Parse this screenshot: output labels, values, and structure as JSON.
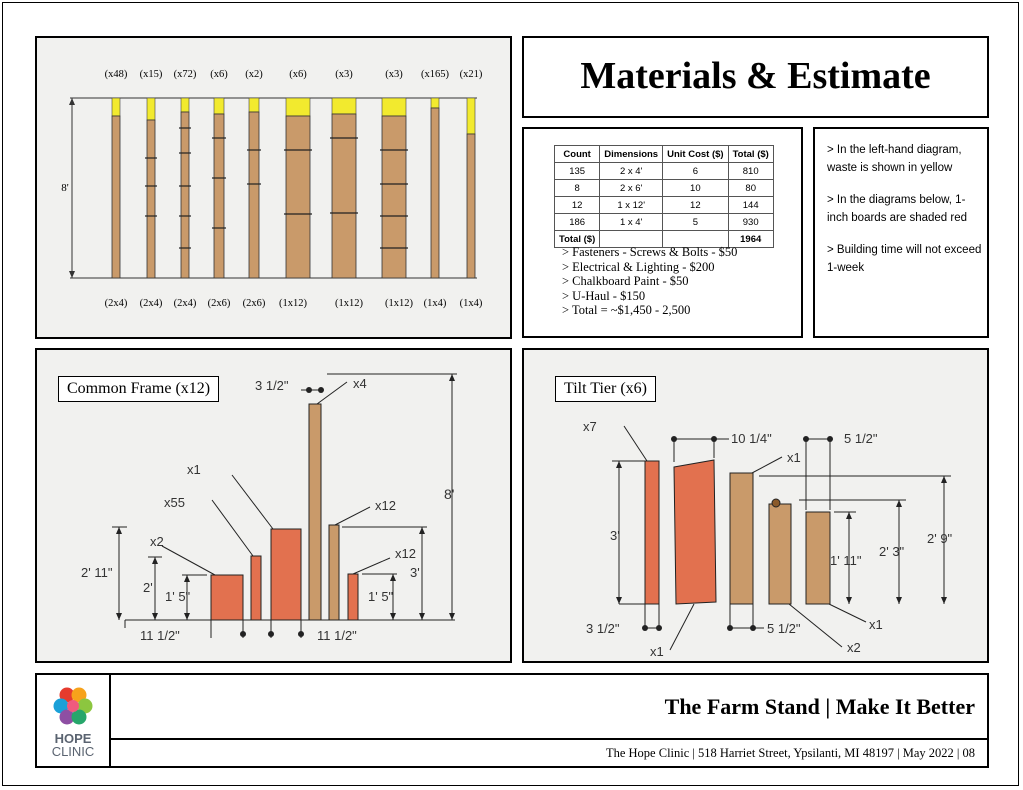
{
  "title": "Materials & Estimate",
  "lumber_diagram": {
    "counts": [
      "(x48)",
      "(x15)",
      "(x72)",
      "(x6)",
      "(x2)",
      "(x6)",
      "(x3)",
      "(x3)",
      "(x165)",
      "(x21)"
    ],
    "sizes": [
      "(2x4)",
      "(2x4)",
      "(2x4)",
      "(2x6)",
      "(2x6)",
      "(1x12)",
      "(1x12)",
      "(1x12)",
      "(1x4)",
      "(1x4)"
    ],
    "height_label": "8'"
  },
  "estimate_table": {
    "headers": [
      "Count",
      "Dimensions",
      "Unit Cost ($)",
      "Total ($)"
    ],
    "rows": [
      [
        "135",
        "2 x 4'",
        "6",
        "810"
      ],
      [
        "8",
        "2 x 6'",
        "10",
        "80"
      ],
      [
        "12",
        "1 x 12'",
        "12",
        "144"
      ],
      [
        "186",
        "1 x 4'",
        "5",
        "930"
      ]
    ],
    "total_label": "Total ($)",
    "total_value": "1964"
  },
  "additional_costs": [
    "> Fasteners - Screws & Bolts - $50",
    "> Electrical & Lighting - $200",
    "> Chalkboard Paint - $50",
    "> U-Haul - $150",
    "> Total = ~$1,450 - 2,500"
  ],
  "notes": [
    "> In the left-hand diagram, waste is shown in yellow",
    "> In the diagrams below, 1-inch boards are shaded red",
    "> Building time will not exceed 1-week"
  ],
  "common_frame": {
    "label": "Common Frame (x12)",
    "annotations": {
      "top_width": "3 1/2\"",
      "x4": "x4",
      "x1": "x1",
      "x55": "x55",
      "x2": "x2",
      "x12a": "x12",
      "x12b": "x12",
      "h_total": "8'",
      "h_2_11": "2' 11\"",
      "h_2": "2'",
      "h_1_5_left": "1' 5\"",
      "h_3": "3'",
      "h_1_5_right": "1' 5\"",
      "w_left": "11 1/2\"",
      "w_right": "11 1/2\""
    }
  },
  "tilt_tier": {
    "label": "Tilt Tier (x6)",
    "annotations": {
      "x7": "x7",
      "w_10_1_4": "10 1/4\"",
      "w_5_1_2_top": "5 1/2\"",
      "x1_top": "x1",
      "h_3": "3'",
      "h_1_11": "1' 11\"",
      "h_2_3": "2' 3\"",
      "h_2_9": "2' 9\"",
      "w_3_1_2": "3 1/2\"",
      "w_5_1_2_bottom": "5 1/2\"",
      "x1_bottom_left": "x1",
      "x1_bottom_right": "x1",
      "x2": "x2"
    }
  },
  "footer": {
    "logo_line1": "HOPE",
    "logo_line2": "CLINIC",
    "title": "The Farm Stand | Make It Better",
    "subtitle": "The Hope Clinic  |  518 Harriet Street, Ypsilanti, MI 48197  |  May 2022  |  08"
  },
  "colors": {
    "waste": "#f2ea2e",
    "wood": "#c99a6a",
    "red_board": "#e2714f",
    "paper": "#f1f1ef"
  }
}
